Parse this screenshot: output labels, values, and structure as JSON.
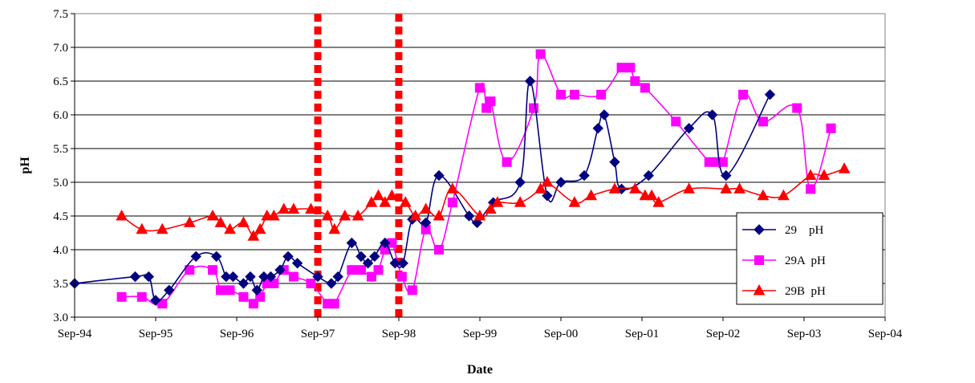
{
  "chart_data": {
    "type": "line",
    "xlabel": "Date",
    "ylabel": "pH",
    "ylim": [
      3.0,
      7.5
    ],
    "y_ticks": [
      "3.0",
      "3.5",
      "4.0",
      "4.5",
      "5.0",
      "5.5",
      "6.0",
      "6.5",
      "7.0",
      "7.5"
    ],
    "x_ticks": [
      "Sep-94",
      "Sep-95",
      "Sep-96",
      "Sep-97",
      "Sep-98",
      "Sep-99",
      "Sep-00",
      "Sep-01",
      "Sep-02",
      "Sep-03",
      "Sep-04"
    ],
    "xlim": [
      "1994-09-01",
      "2004-09-01"
    ],
    "grid": "horizontal",
    "legend_position": "right",
    "vertical_markers": [
      "1997-09-01",
      "1998-09-01"
    ],
    "vertical_marker_color": "#ff0000",
    "series": [
      {
        "name": "29    pH",
        "color": "#000080",
        "marker": "diamond",
        "points": [
          [
            "1994-09-01",
            3.5
          ],
          [
            "1995-06-01",
            3.6
          ],
          [
            "1995-08-01",
            3.6
          ],
          [
            "1995-09-01",
            3.25
          ],
          [
            "1995-11-01",
            3.4
          ],
          [
            "1996-03-01",
            3.9
          ],
          [
            "1996-06-01",
            3.9
          ],
          [
            "1996-07-15",
            3.6
          ],
          [
            "1996-08-15",
            3.6
          ],
          [
            "1996-10-01",
            3.5
          ],
          [
            "1996-11-01",
            3.6
          ],
          [
            "1996-12-01",
            3.4
          ],
          [
            "1997-01-01",
            3.6
          ],
          [
            "1997-02-01",
            3.6
          ],
          [
            "1997-03-15",
            3.7
          ],
          [
            "1997-04-20",
            3.9
          ],
          [
            "1997-06-01",
            3.8
          ],
          [
            "1997-09-01",
            3.6
          ],
          [
            "1997-11-01",
            3.5
          ],
          [
            "1997-12-01",
            3.6
          ],
          [
            "1998-02-01",
            4.1
          ],
          [
            "1998-03-15",
            3.9
          ],
          [
            "1998-04-15",
            3.8
          ],
          [
            "1998-05-15",
            3.9
          ],
          [
            "1998-07-01",
            4.1
          ],
          [
            "1998-08-15",
            3.8
          ],
          [
            "1998-09-20",
            3.8
          ],
          [
            "1998-11-01",
            4.45
          ],
          [
            "1999-01-01",
            4.4
          ],
          [
            "1999-03-01",
            5.1
          ],
          [
            "1999-07-15",
            4.5
          ],
          [
            "1999-08-20",
            4.4
          ],
          [
            "1999-11-01",
            4.7
          ],
          [
            "2000-03-01",
            5.0
          ],
          [
            "2000-04-15",
            6.5
          ],
          [
            "2000-07-01",
            4.8
          ],
          [
            "2000-09-01",
            5.0
          ],
          [
            "2000-12-15",
            5.1
          ],
          [
            "2001-02-15",
            5.8
          ],
          [
            "2001-03-15",
            6.0
          ],
          [
            "2001-05-01",
            5.3
          ],
          [
            "2001-06-01",
            4.9
          ],
          [
            "2001-10-01",
            5.1
          ],
          [
            "2002-04-01",
            5.8
          ],
          [
            "2002-07-15",
            6.0
          ],
          [
            "2002-09-15",
            5.1
          ],
          [
            "2003-04-01",
            6.3
          ]
        ]
      },
      {
        "name": "29A  pH",
        "color": "#ff00ff",
        "marker": "square",
        "points": [
          [
            "1995-04-01",
            3.3
          ],
          [
            "1995-07-01",
            3.3
          ],
          [
            "1995-10-01",
            3.2
          ],
          [
            "1996-02-01",
            3.7
          ],
          [
            "1996-05-15",
            3.7
          ],
          [
            "1996-06-20",
            3.4
          ],
          [
            "1996-08-01",
            3.4
          ],
          [
            "1996-10-01",
            3.3
          ],
          [
            "1996-11-15",
            3.2
          ],
          [
            "1996-12-15",
            3.3
          ],
          [
            "1997-01-15",
            3.5
          ],
          [
            "1997-02-15",
            3.5
          ],
          [
            "1997-04-01",
            3.7
          ],
          [
            "1997-05-15",
            3.6
          ],
          [
            "1997-08-01",
            3.5
          ],
          [
            "1997-10-15",
            3.2
          ],
          [
            "1997-11-15",
            3.2
          ],
          [
            "1998-02-01",
            3.7
          ],
          [
            "1998-03-15",
            3.7
          ],
          [
            "1998-05-01",
            3.6
          ],
          [
            "1998-06-01",
            3.7
          ],
          [
            "1998-07-01",
            4.0
          ],
          [
            "1998-08-01",
            4.1
          ],
          [
            "1998-09-15",
            3.6
          ],
          [
            "1998-11-01",
            3.4
          ],
          [
            "1999-01-01",
            4.3
          ],
          [
            "1999-03-01",
            4.0
          ],
          [
            "1999-05-01",
            4.7
          ],
          [
            "1999-09-01",
            6.4
          ],
          [
            "1999-10-01",
            6.1
          ],
          [
            "1999-10-20",
            6.2
          ],
          [
            "2000-01-01",
            5.3
          ],
          [
            "2000-05-01",
            6.1
          ],
          [
            "2000-06-01",
            6.9
          ],
          [
            "2000-09-01",
            6.3
          ],
          [
            "2000-11-01",
            6.3
          ],
          [
            "2001-03-01",
            6.3
          ],
          [
            "2001-06-01",
            6.7
          ],
          [
            "2001-07-10",
            6.7
          ],
          [
            "2001-08-01",
            6.5
          ],
          [
            "2001-09-15",
            6.4
          ],
          [
            "2002-02-01",
            5.9
          ],
          [
            "2002-07-01",
            5.3
          ],
          [
            "2002-08-01",
            5.3
          ],
          [
            "2002-09-01",
            5.3
          ],
          [
            "2002-12-01",
            6.3
          ],
          [
            "2003-03-01",
            5.9
          ],
          [
            "2003-08-01",
            6.1
          ],
          [
            "2003-10-01",
            4.9
          ],
          [
            "2004-01-01",
            5.8
          ]
        ]
      },
      {
        "name": "29B  pH",
        "color": "#ff0000",
        "marker": "triangle",
        "points": [
          [
            "1995-04-01",
            4.5
          ],
          [
            "1995-07-01",
            4.3
          ],
          [
            "1995-10-01",
            4.3
          ],
          [
            "1996-02-01",
            4.4
          ],
          [
            "1996-05-15",
            4.5
          ],
          [
            "1996-06-20",
            4.4
          ],
          [
            "1996-08-01",
            4.3
          ],
          [
            "1996-10-01",
            4.4
          ],
          [
            "1996-11-15",
            4.2
          ],
          [
            "1996-12-15",
            4.3
          ],
          [
            "1997-01-15",
            4.5
          ],
          [
            "1997-02-15",
            4.5
          ],
          [
            "1997-04-01",
            4.6
          ],
          [
            "1997-05-15",
            4.6
          ],
          [
            "1997-08-01",
            4.6
          ],
          [
            "1997-10-15",
            4.5
          ],
          [
            "1997-11-15",
            4.3
          ],
          [
            "1998-01-01",
            4.5
          ],
          [
            "1998-03-01",
            4.5
          ],
          [
            "1998-05-01",
            4.7
          ],
          [
            "1998-06-01",
            4.8
          ],
          [
            "1998-07-01",
            4.7
          ],
          [
            "1998-08-01",
            4.8
          ],
          [
            "1998-10-01",
            4.7
          ],
          [
            "1998-11-15",
            4.5
          ],
          [
            "1999-01-01",
            4.6
          ],
          [
            "1999-03-01",
            4.5
          ],
          [
            "1999-05-01",
            4.9
          ],
          [
            "1999-09-01",
            4.5
          ],
          [
            "1999-10-20",
            4.6
          ],
          [
            "1999-11-20",
            4.7
          ],
          [
            "2000-03-01",
            4.7
          ],
          [
            "2000-06-01",
            4.9
          ],
          [
            "2000-07-01",
            5.0
          ],
          [
            "2000-11-01",
            4.7
          ],
          [
            "2001-01-15",
            4.8
          ],
          [
            "2001-05-01",
            4.9
          ],
          [
            "2001-08-01",
            4.9
          ],
          [
            "2001-09-15",
            4.8
          ],
          [
            "2001-10-15",
            4.8
          ],
          [
            "2001-11-15",
            4.7
          ],
          [
            "2002-04-01",
            4.9
          ],
          [
            "2002-09-15",
            4.9
          ],
          [
            "2002-11-15",
            4.9
          ],
          [
            "2003-03-01",
            4.8
          ],
          [
            "2003-06-01",
            4.8
          ],
          [
            "2003-10-01",
            5.1
          ],
          [
            "2003-12-01",
            5.1
          ],
          [
            "2004-03-01",
            5.2
          ]
        ]
      }
    ]
  }
}
